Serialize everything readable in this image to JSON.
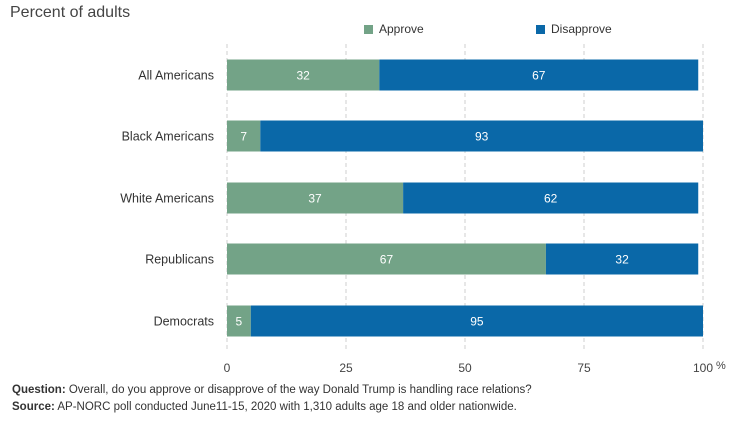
{
  "chart_data": {
    "type": "bar",
    "stacked": true,
    "orientation": "horizontal",
    "subtitle": "Percent of adults",
    "categories": [
      "All Americans",
      "Black Americans",
      "White Americans",
      "Republicans",
      "Democrats"
    ],
    "series": [
      {
        "name": "Approve",
        "color": "#73a387",
        "values": [
          32,
          7,
          37,
          67,
          5
        ]
      },
      {
        "name": "Disapprove",
        "color": "#0a68a8",
        "values": [
          67,
          93,
          62,
          32,
          95
        ]
      }
    ],
    "xlim": [
      0,
      100
    ],
    "xticks": [
      "0",
      "25",
      "50",
      "75",
      "100"
    ],
    "x_unit": "%",
    "legend_position": "top-right",
    "grid": "vertical dashed"
  },
  "footer": {
    "question_label": "Question:",
    "question_text": " Overall, do you approve or disapprove of the way Donald Trump is handling race relations?",
    "source_label": "Source:",
    "source_text": " AP-NORC poll conducted June11-15, 2020 with 1,310 adults age 18 and older nationwide."
  }
}
